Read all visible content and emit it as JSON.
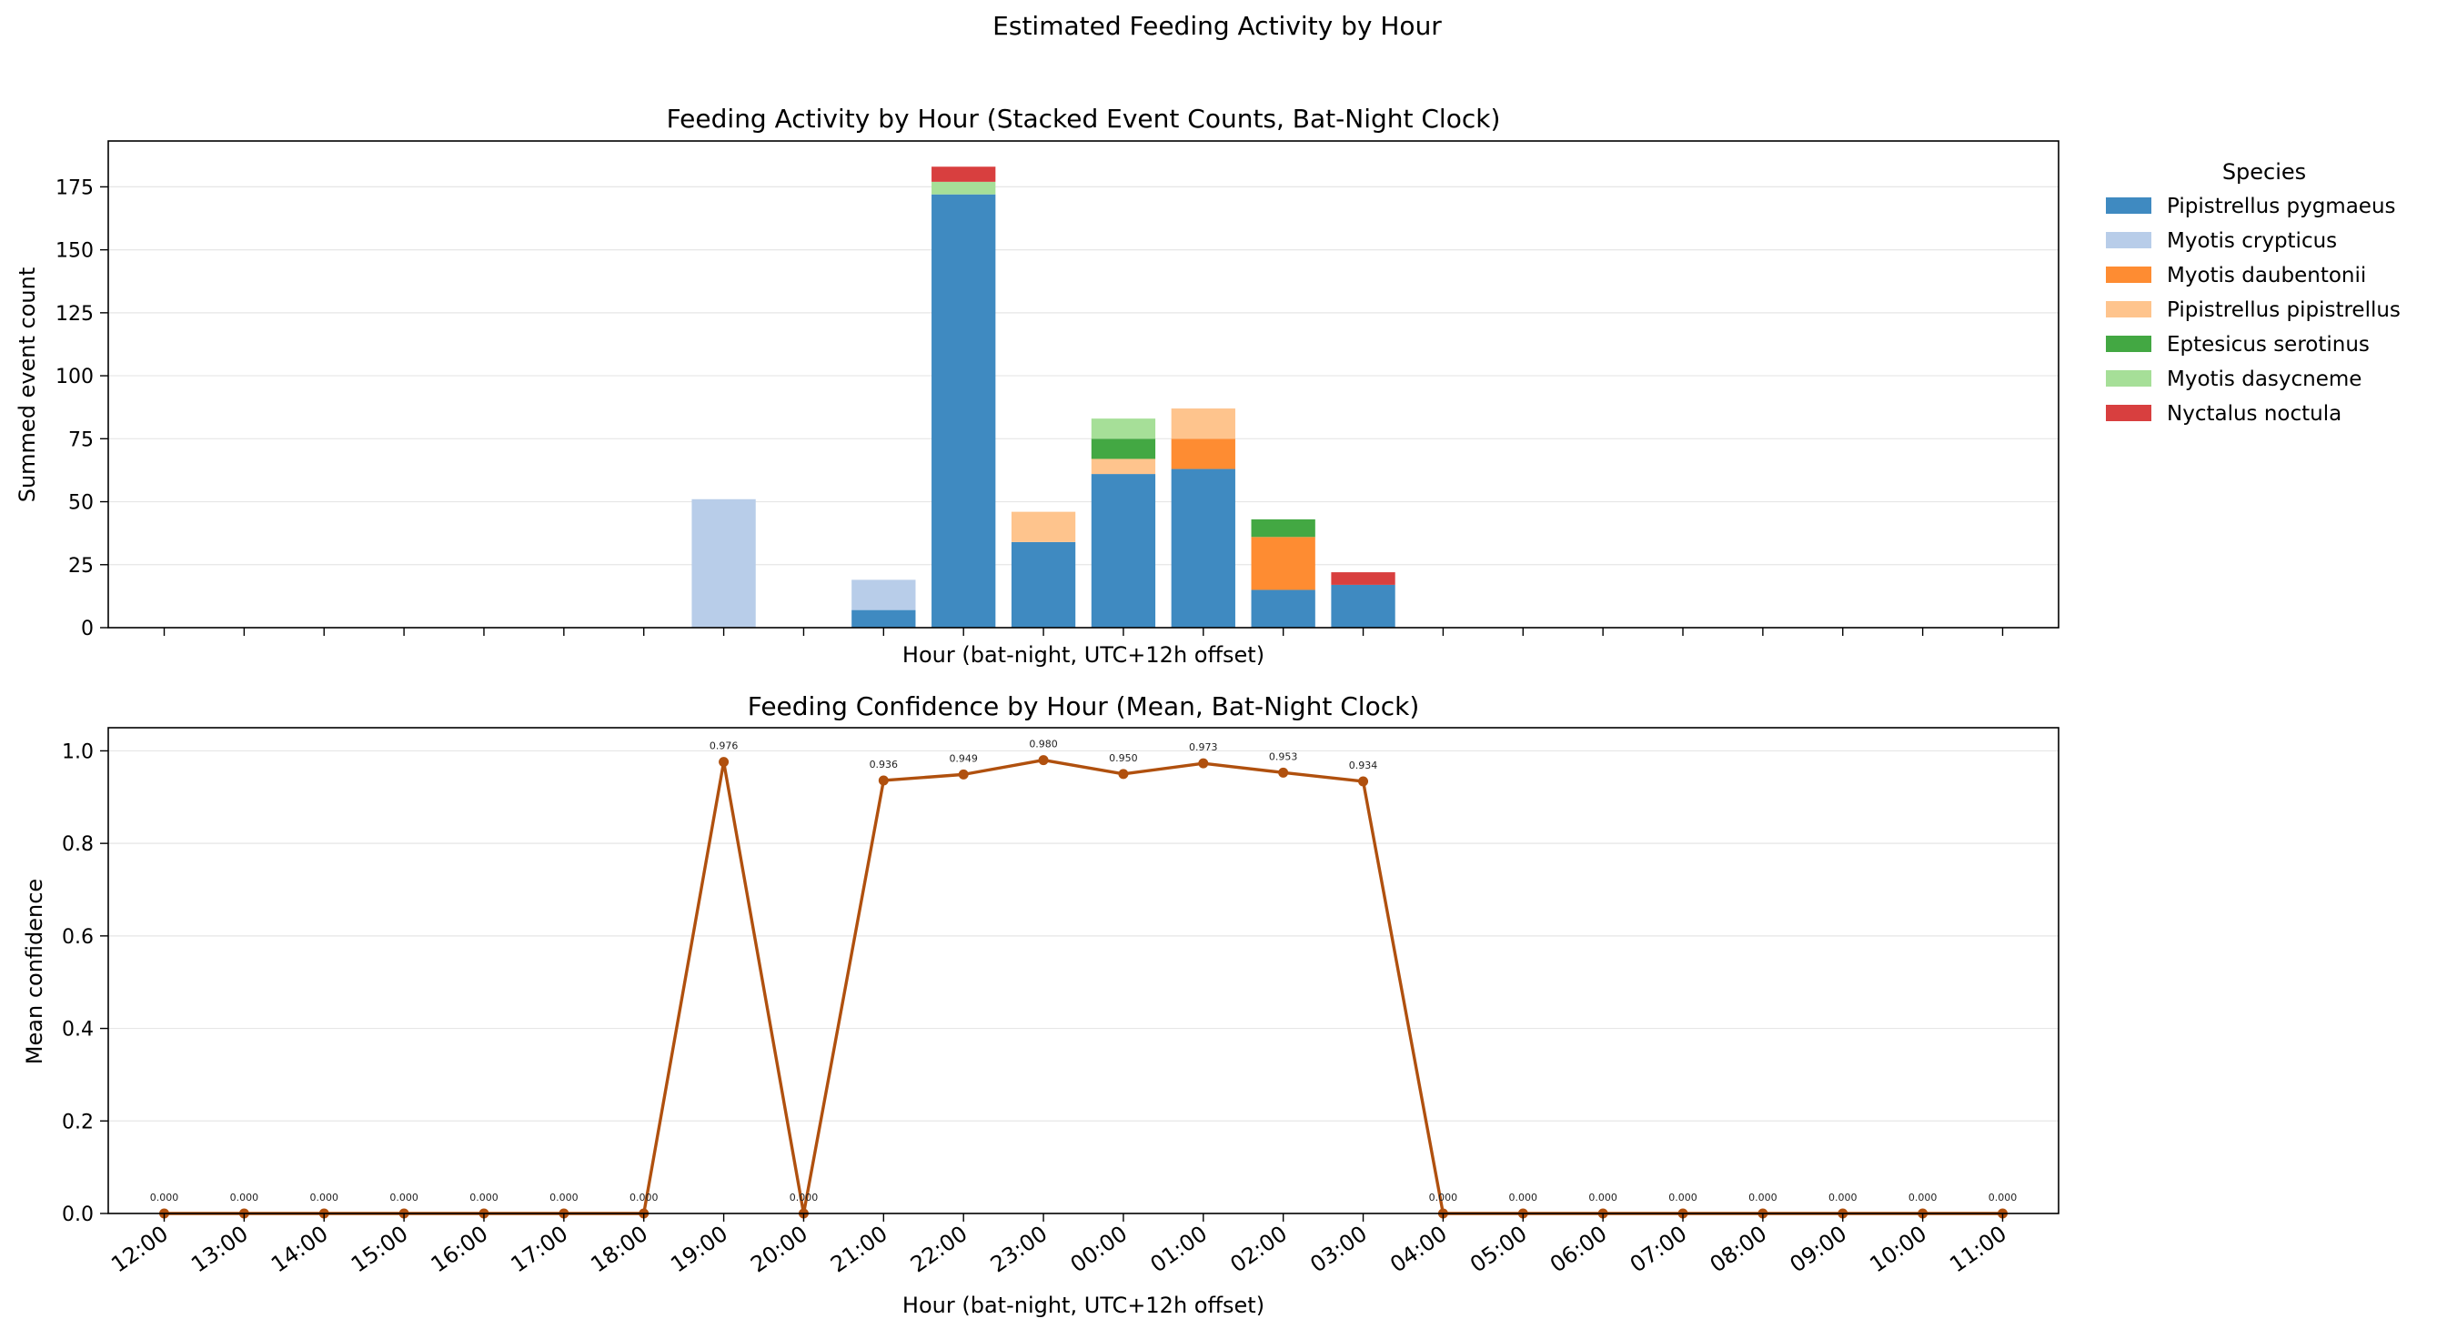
{
  "figure": {
    "suptitle": "Estimated Feeding Activity by Hour"
  },
  "chart_data": [
    {
      "type": "bar",
      "stacked": true,
      "title": "Feeding Activity by Hour (Stacked Event Counts, Bat-Night Clock)",
      "xlabel": "Hour (bat-night, UTC+12h offset)",
      "ylabel": "Summed event count",
      "ylim": [
        0,
        193.2
      ],
      "yticks": [
        0,
        25,
        50,
        75,
        100,
        125,
        150,
        175
      ],
      "grid": "y",
      "legend_title": "Species",
      "legend_position": "outside-right",
      "categories": [
        "12:00",
        "13:00",
        "14:00",
        "15:00",
        "16:00",
        "17:00",
        "18:00",
        "19:00",
        "20:00",
        "21:00",
        "22:00",
        "23:00",
        "00:00",
        "01:00",
        "02:00",
        "03:00",
        "04:00",
        "05:00",
        "06:00",
        "07:00",
        "08:00",
        "09:00",
        "10:00",
        "11:00"
      ],
      "series": [
        {
          "name": "Pipistrellus pygmaeus",
          "color": "#3f8ac1",
          "values": [
            0,
            0,
            0,
            0,
            0,
            0,
            0,
            0,
            0,
            7,
            172,
            34,
            61,
            63,
            15,
            17,
            0,
            0,
            0,
            0,
            0,
            0,
            0,
            0
          ]
        },
        {
          "name": "Myotis crypticus",
          "color": "#b8cde9",
          "values": [
            0,
            0,
            0,
            0,
            0,
            0,
            0,
            51,
            0,
            12,
            0,
            0,
            0,
            0,
            0,
            0,
            0,
            0,
            0,
            0,
            0,
            0,
            0,
            0
          ]
        },
        {
          "name": "Myotis daubentonii",
          "color": "#fe8c32",
          "values": [
            0,
            0,
            0,
            0,
            0,
            0,
            0,
            0,
            0,
            0,
            0,
            0,
            0,
            12,
            21,
            0,
            0,
            0,
            0,
            0,
            0,
            0,
            0,
            0
          ]
        },
        {
          "name": "Pipistrellus pipistrellus",
          "color": "#fec48d",
          "values": [
            0,
            0,
            0,
            0,
            0,
            0,
            0,
            0,
            0,
            0,
            0,
            12,
            6,
            12,
            0,
            0,
            0,
            0,
            0,
            0,
            0,
            0,
            0,
            0
          ]
        },
        {
          "name": "Eptesicus serotinus",
          "color": "#43a843",
          "values": [
            0,
            0,
            0,
            0,
            0,
            0,
            0,
            0,
            0,
            0,
            0,
            0,
            8,
            0,
            7,
            0,
            0,
            0,
            0,
            0,
            0,
            0,
            0,
            0
          ]
        },
        {
          "name": "Myotis dasycneme",
          "color": "#a6df98",
          "values": [
            0,
            0,
            0,
            0,
            0,
            0,
            0,
            0,
            0,
            0,
            5,
            0,
            8,
            0,
            0,
            0,
            0,
            0,
            0,
            0,
            0,
            0,
            0,
            0
          ]
        },
        {
          "name": "Nyctalus noctula",
          "color": "#d83f3f",
          "values": [
            0,
            0,
            0,
            0,
            0,
            0,
            0,
            0,
            0,
            0,
            6,
            0,
            0,
            0,
            0,
            5,
            0,
            0,
            0,
            0,
            0,
            0,
            0,
            0
          ]
        }
      ]
    },
    {
      "type": "line",
      "title": "Feeding Confidence by Hour (Mean, Bat-Night Clock)",
      "xlabel": "Hour (bat-night, UTC+12h offset)",
      "ylabel": "Mean confidence",
      "ylim": [
        0,
        1.05
      ],
      "yticks": [
        "0.0",
        "0.2",
        "0.4",
        "0.6",
        "0.8",
        "1.0"
      ],
      "grid": "y",
      "color": "#b0500e",
      "categories": [
        "12:00",
        "13:00",
        "14:00",
        "15:00",
        "16:00",
        "17:00",
        "18:00",
        "19:00",
        "20:00",
        "21:00",
        "22:00",
        "23:00",
        "00:00",
        "01:00",
        "02:00",
        "03:00",
        "04:00",
        "05:00",
        "06:00",
        "07:00",
        "08:00",
        "09:00",
        "10:00",
        "11:00"
      ],
      "values": [
        0,
        0,
        0,
        0,
        0,
        0,
        0,
        0.976,
        0,
        0.936,
        0.949,
        0.98,
        0.95,
        0.973,
        0.953,
        0.934,
        0,
        0,
        0,
        0,
        0,
        0,
        0,
        0
      ],
      "labels": [
        "0.000",
        "0.000",
        "0.000",
        "0.000",
        "0.000",
        "0.000",
        "0.000",
        "0.976",
        "0.000",
        "0.936",
        "0.949",
        "0.980",
        "0.950",
        "0.973",
        "0.953",
        "0.934",
        "0.000",
        "0.000",
        "0.000",
        "0.000",
        "0.000",
        "0.000",
        "0.000",
        "0.000"
      ]
    }
  ]
}
